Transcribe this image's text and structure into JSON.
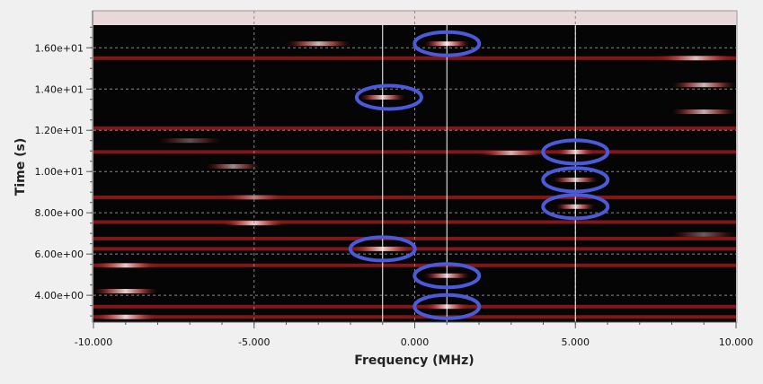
{
  "chart_data": {
    "type": "heatmap",
    "title": "",
    "xlabel": "Frequency (MHz)",
    "ylabel": "Time (s)",
    "xlim": [
      -10,
      10
    ],
    "ylim": [
      2.7,
      17.1
    ],
    "x_ticks": [
      {
        "value": -10,
        "label": "-10.000"
      },
      {
        "value": -5,
        "label": "-5.000"
      },
      {
        "value": 0,
        "label": "0.000"
      },
      {
        "value": 5,
        "label": "5.000"
      },
      {
        "value": 10,
        "label": "10.000"
      }
    ],
    "y_ticks": [
      {
        "value": 4,
        "label": "4.00e+00"
      },
      {
        "value": 6,
        "label": "6.00e+00"
      },
      {
        "value": 8,
        "label": "8.00e+00"
      },
      {
        "value": 10,
        "label": "1.00e+01"
      },
      {
        "value": 12,
        "label": "1.20e+01"
      },
      {
        "value": 14,
        "label": "1.40e+01"
      },
      {
        "value": 16,
        "label": "1.60e+01"
      }
    ],
    "grid": true,
    "background_color": "#050505",
    "band_color": "#9a1a1a",
    "highlight_color": "#4a5ad8",
    "broadband_bursts_time_s": [
      2.95,
      3.45,
      5.45,
      6.25,
      6.75,
      7.55,
      8.75,
      10.95,
      12.1,
      15.5
    ],
    "narrowband_bursts": [
      {
        "t": 16.2,
        "f_start": -4.0,
        "f_end": -2.0,
        "intensity": 0.8
      },
      {
        "t": 16.2,
        "f_start": 0.3,
        "f_end": 1.7,
        "intensity": 1.0
      },
      {
        "t": 15.5,
        "f_start": 7.5,
        "f_end": 10.0,
        "intensity": 0.8
      },
      {
        "t": 14.2,
        "f_start": 8.0,
        "f_end": 10.0,
        "intensity": 0.8
      },
      {
        "t": 13.6,
        "f_start": -1.7,
        "f_end": -0.3,
        "intensity": 0.9
      },
      {
        "t": 12.9,
        "f_start": 8.0,
        "f_end": 10.0,
        "intensity": 0.75
      },
      {
        "t": 11.5,
        "f_start": -8.0,
        "f_end": -6.0,
        "intensity": 0.35
      },
      {
        "t": 10.9,
        "f_start": 2.0,
        "f_end": 4.0,
        "intensity": 0.75
      },
      {
        "t": 10.95,
        "f_start": 4.4,
        "f_end": 5.6,
        "intensity": 0.9
      },
      {
        "t": 10.25,
        "f_start": -6.5,
        "f_end": -4.8,
        "intensity": 0.6
      },
      {
        "t": 9.6,
        "f_start": 4.3,
        "f_end": 5.7,
        "intensity": 0.85
      },
      {
        "t": 8.75,
        "f_start": -6.0,
        "f_end": -4.0,
        "intensity": 0.5
      },
      {
        "t": 8.3,
        "f_start": 4.4,
        "f_end": 5.6,
        "intensity": 0.9
      },
      {
        "t": 7.5,
        "f_start": -6.0,
        "f_end": -4.0,
        "intensity": 0.9
      },
      {
        "t": 6.95,
        "f_start": 8.0,
        "f_end": 10.0,
        "intensity": 0.4
      },
      {
        "t": 6.25,
        "f_start": -2.0,
        "f_end": 0.0,
        "intensity": 0.9
      },
      {
        "t": 5.45,
        "f_start": -10.0,
        "f_end": -8.0,
        "intensity": 0.85
      },
      {
        "t": 4.95,
        "f_start": 0.3,
        "f_end": 1.7,
        "intensity": 0.9
      },
      {
        "t": 4.2,
        "f_start": -10.0,
        "f_end": -8.0,
        "intensity": 0.9
      },
      {
        "t": 3.45,
        "f_start": 0.3,
        "f_end": 1.7,
        "intensity": 0.9
      },
      {
        "t": 2.95,
        "f_start": -10.0,
        "f_end": -8.0,
        "intensity": 0.9
      }
    ],
    "marker_lines_freq_mhz": [
      -1,
      1,
      5
    ],
    "highlighted_regions": [
      {
        "f": 1.0,
        "t": 16.2
      },
      {
        "f": -0.8,
        "t": 13.6
      },
      {
        "f": 5.0,
        "t": 10.95
      },
      {
        "f": 5.0,
        "t": 9.6
      },
      {
        "f": 5.0,
        "t": 8.3
      },
      {
        "f": -1.0,
        "t": 6.25
      },
      {
        "f": 1.0,
        "t": 4.95
      },
      {
        "f": 1.0,
        "t": 3.45
      }
    ]
  }
}
